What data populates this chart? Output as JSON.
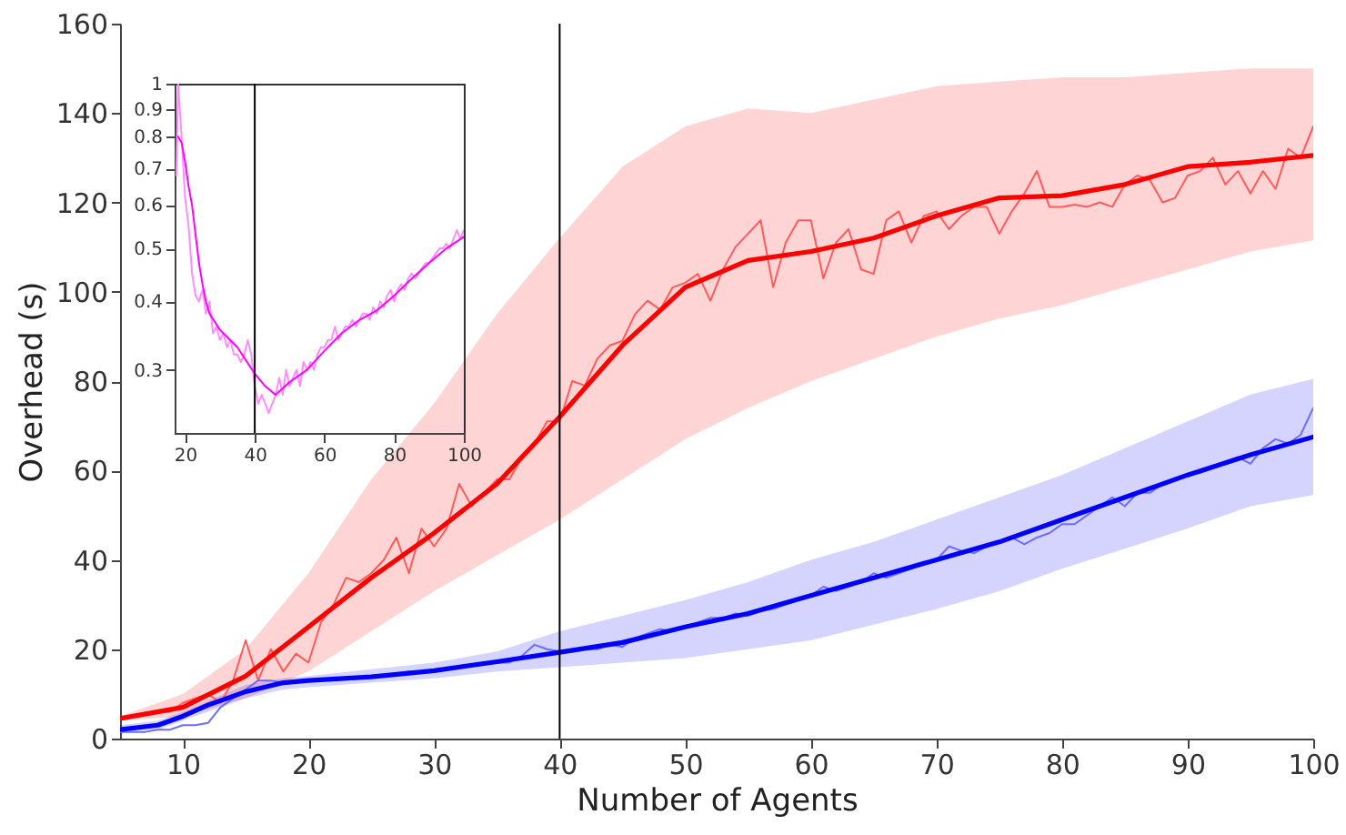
{
  "chart_data": [
    {
      "type": "line",
      "xlabel": "Number of Agents",
      "ylabel": "Overhead (s)",
      "xlim": [
        5,
        100
      ],
      "ylim": [
        0,
        160
      ],
      "xticks": [
        10,
        20,
        30,
        40,
        50,
        60,
        70,
        80,
        90,
        100
      ],
      "yticks": [
        0,
        20,
        40,
        60,
        80,
        100,
        120,
        140,
        160
      ],
      "grid": false,
      "marker": "none",
      "line_style": "solid",
      "ref_lines": [
        {
          "axis": "x",
          "value": 40,
          "color": "#000000"
        }
      ],
      "series": [
        {
          "color": "#ff5a5a",
          "x": [
            5,
            6,
            7,
            8,
            9,
            10,
            11,
            12,
            13,
            14,
            15,
            16,
            17,
            18,
            19,
            20,
            21,
            22,
            23,
            24,
            25,
            26,
            27,
            28,
            29,
            30,
            31,
            32,
            33,
            34,
            35,
            36,
            37,
            38,
            39,
            40,
            41,
            42,
            43,
            44,
            45,
            46,
            47,
            48,
            49,
            50,
            51,
            52,
            53,
            54,
            55,
            56,
            57,
            58,
            59,
            60,
            61,
            62,
            63,
            64,
            65,
            66,
            67,
            68,
            69,
            70,
            71,
            72,
            73,
            74,
            75,
            76,
            77,
            78,
            79,
            80,
            81,
            82,
            83,
            84,
            85,
            86,
            87,
            88,
            89,
            90,
            91,
            92,
            93,
            94,
            95,
            96,
            97,
            98,
            99,
            100
          ],
          "values": [
            4.5,
            5,
            5.5,
            6,
            6,
            8,
            9,
            10,
            8,
            13,
            22,
            13,
            20,
            15,
            19,
            17,
            26,
            30,
            36,
            35,
            37,
            40,
            45,
            37,
            47,
            43,
            47,
            57,
            52,
            55,
            58,
            58,
            63,
            66,
            71,
            71,
            80,
            79,
            85,
            88,
            89,
            95,
            98,
            96,
            101,
            102,
            104,
            98,
            105,
            110,
            113,
            116,
            101,
            111,
            116,
            116,
            103,
            111,
            114,
            105,
            104,
            116,
            118,
            111,
            117,
            118,
            114,
            117,
            119,
            119,
            113,
            118,
            122,
            127,
            119,
            119,
            119.5,
            119,
            120,
            119,
            124,
            126,
            125,
            120,
            121,
            126,
            127,
            130,
            124,
            127,
            122,
            127,
            123,
            132,
            130,
            137
          ]
        },
        {
          "color": "#ff0000",
          "x": [
            5,
            10,
            15,
            20,
            25,
            30,
            35,
            40,
            45,
            50,
            55,
            60,
            65,
            70,
            75,
            80,
            85,
            90,
            95,
            100
          ],
          "values": [
            4.5,
            7,
            14,
            25,
            36,
            46,
            57,
            72,
            88,
            101,
            107,
            109,
            112,
            117,
            121,
            121.5,
            124,
            128,
            129,
            130.5
          ],
          "lower": [
            4,
            5,
            9,
            15,
            24,
            33,
            41,
            49,
            58,
            67,
            74,
            80,
            85,
            90,
            94,
            97,
            101,
            105,
            109,
            111.5
          ],
          "upper": [
            5,
            10,
            20,
            37,
            58,
            75,
            95,
            112,
            128,
            137,
            141,
            140,
            143,
            146,
            147,
            148,
            148,
            149,
            150,
            150
          ]
        },
        {
          "color": "#6b6bff",
          "x": [
            5,
            6,
            7,
            8,
            9,
            10,
            11,
            12,
            13,
            14,
            15,
            16,
            17,
            18,
            19,
            20,
            21,
            22,
            23,
            24,
            25,
            26,
            27,
            28,
            29,
            30,
            31,
            32,
            33,
            34,
            35,
            36,
            37,
            38,
            39,
            40,
            41,
            42,
            43,
            44,
            45,
            46,
            47,
            48,
            49,
            50,
            51,
            52,
            53,
            54,
            55,
            56,
            57,
            58,
            59,
            60,
            61,
            62,
            63,
            64,
            65,
            66,
            67,
            68,
            69,
            70,
            71,
            72,
            73,
            74,
            75,
            76,
            77,
            78,
            79,
            80,
            81,
            82,
            83,
            84,
            85,
            86,
            87,
            88,
            89,
            90,
            91,
            92,
            93,
            94,
            95,
            96,
            97,
            98,
            99,
            100
          ],
          "values": [
            1.5,
            1.5,
            1.5,
            2,
            2,
            3,
            3,
            3.5,
            7,
            9,
            11,
            13,
            13,
            12.5,
            13,
            13,
            13,
            13.5,
            13.5,
            13.5,
            14,
            14,
            14.5,
            15,
            15,
            15,
            15.5,
            16,
            16.5,
            17,
            17,
            17,
            18.5,
            21,
            20,
            19.5,
            19.5,
            20,
            20,
            21,
            20.5,
            22.5,
            23.5,
            24.5,
            24,
            25,
            26,
            27,
            27,
            28,
            27.5,
            28.5,
            29,
            30,
            31,
            32,
            34,
            33,
            34,
            35,
            37,
            36,
            37,
            38,
            39.5,
            40,
            43,
            42,
            41.5,
            43,
            44,
            45,
            43.5,
            45,
            46,
            48,
            48,
            50,
            52,
            54,
            52,
            55,
            55,
            57,
            58,
            59,
            59.5,
            60.5,
            62,
            63,
            61.5,
            65,
            67,
            66,
            68,
            74
          ]
        },
        {
          "color": "#0000ff",
          "x": [
            5,
            8,
            10,
            12,
            15,
            18,
            20,
            25,
            30,
            35,
            40,
            45,
            50,
            55,
            60,
            65,
            70,
            75,
            80,
            85,
            90,
            95,
            100
          ],
          "values": [
            2,
            3,
            5,
            7.5,
            10.5,
            12.5,
            13,
            13.8,
            15.2,
            17.2,
            19.3,
            21.5,
            25,
            28,
            32,
            36,
            40,
            44,
            49,
            54,
            59,
            63.5,
            67.5
          ],
          "lower": [
            1.5,
            2,
            4,
            6,
            9,
            11,
            11.5,
            12.5,
            13.5,
            15,
            16,
            17,
            18,
            20,
            22,
            25.5,
            29,
            33,
            38,
            42.5,
            47,
            52,
            54.5
          ],
          "upper": [
            3,
            4,
            6,
            8.5,
            12,
            13.5,
            14,
            15.5,
            17,
            19.5,
            24,
            27.5,
            31,
            35,
            40,
            44,
            49,
            54,
            59,
            65,
            71,
            77,
            80.5
          ]
        }
      ]
    },
    {
      "type": "line",
      "xlim": [
        17,
        100
      ],
      "ylim": [
        0.23,
        1
      ],
      "log": "y",
      "xticks": [
        20,
        40,
        60,
        80,
        100
      ],
      "yticks": [
        0.3,
        0.4,
        0.5,
        0.6,
        0.7,
        0.8,
        0.9,
        1
      ],
      "grid": false,
      "marker": "none",
      "line_style": "solid",
      "ref_lines": [
        {
          "axis": "x",
          "value": 40,
          "color": "#000000"
        }
      ],
      "series": [
        {
          "color": "#ff8cff",
          "x": [
            17.5,
            18,
            19,
            20,
            21,
            22,
            23,
            24,
            25,
            26,
            27,
            28,
            29,
            30,
            31,
            32,
            33,
            34,
            35,
            36,
            37,
            38,
            39,
            40,
            41,
            42,
            43,
            44,
            45,
            46,
            47,
            48,
            49,
            50,
            51,
            52,
            53,
            54,
            55,
            56,
            57,
            58,
            59,
            60,
            61,
            62,
            63,
            64,
            65,
            66,
            67,
            68,
            69,
            70,
            71,
            72,
            73,
            74,
            75,
            76,
            77,
            78,
            79,
            80,
            81,
            82,
            83,
            84,
            85,
            86,
            87,
            88,
            89,
            90,
            91,
            92,
            93,
            94,
            95,
            96,
            97,
            98,
            99,
            100
          ],
          "values": [
            0.68,
            1,
            0.8,
            0.62,
            0.55,
            0.45,
            0.41,
            0.4,
            0.42,
            0.38,
            0.4,
            0.35,
            0.36,
            0.34,
            0.35,
            0.33,
            0.34,
            0.32,
            0.32,
            0.31,
            0.32,
            0.34,
            0.32,
            0.28,
            0.26,
            0.27,
            0.26,
            0.25,
            0.26,
            0.27,
            0.29,
            0.27,
            0.3,
            0.28,
            0.29,
            0.3,
            0.28,
            0.31,
            0.3,
            0.31,
            0.3,
            0.32,
            0.33,
            0.33,
            0.34,
            0.34,
            0.36,
            0.34,
            0.35,
            0.36,
            0.36,
            0.37,
            0.36,
            0.37,
            0.38,
            0.38,
            0.37,
            0.39,
            0.38,
            0.4,
            0.39,
            0.41,
            0.42,
            0.4,
            0.42,
            0.43,
            0.42,
            0.44,
            0.45,
            0.44,
            0.45,
            0.46,
            0.47,
            0.47,
            0.48,
            0.49,
            0.5,
            0.5,
            0.51,
            0.5,
            0.52,
            0.54,
            0.52,
            0.54
          ]
        },
        {
          "color": "#ff00ff",
          "x": [
            18,
            19,
            20,
            21,
            22,
            23,
            24,
            25,
            26,
            27,
            30,
            35,
            40,
            43,
            46,
            50,
            55,
            60,
            65,
            70,
            75,
            80,
            85,
            90,
            95,
            100
          ],
          "values": [
            0.8,
            0.78,
            0.72,
            0.65,
            0.6,
            0.53,
            0.47,
            0.43,
            0.4,
            0.38,
            0.355,
            0.33,
            0.295,
            0.28,
            0.27,
            0.285,
            0.3,
            0.325,
            0.35,
            0.37,
            0.385,
            0.41,
            0.44,
            0.47,
            0.5,
            0.525
          ]
        }
      ]
    }
  ]
}
